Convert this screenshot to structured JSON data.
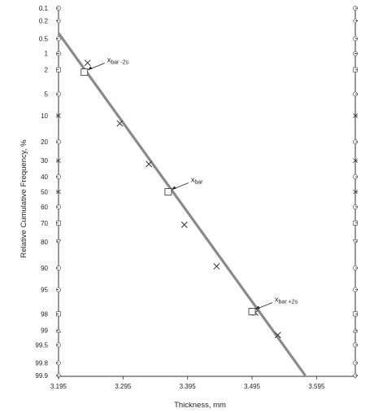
{
  "chart_data": {
    "type": "scatter",
    "title": "",
    "xlabel": "Thickness, mm",
    "ylabel": "Relative Cumulative Frequency, %",
    "xlim": [
      3.195,
      3.655
    ],
    "x_ticks": [
      "3.195",
      "3.295",
      "3.395",
      "3.495",
      "3.595"
    ],
    "y_scale": "normal-probability",
    "y_ticks": [
      "0.1",
      "0.2",
      "0.5",
      "1",
      "2",
      "5",
      "10",
      "20",
      "30",
      "40",
      "50",
      "60",
      "70",
      "80",
      "90",
      "95",
      "98",
      "99",
      "99.5",
      "99.8",
      "99.9"
    ],
    "grid": false,
    "series": [
      {
        "marker": "x",
        "x": [
          3.24,
          3.29,
          3.335,
          3.39,
          3.44,
          3.5,
          3.535
        ],
        "y": [
          1.5,
          12.5,
          32,
          71,
          89.5,
          97.9,
          99.2
        ]
      },
      {
        "type": "line",
        "x": [
          3.195,
          3.5775
        ],
        "y": [
          0.38,
          99.9
        ]
      }
    ],
    "reference_points": [
      {
        "x": 3.235,
        "y": 2.2,
        "label_main": "x",
        "label_sub": "bar -2s"
      },
      {
        "x": 3.365,
        "y": 50,
        "label_main": "x",
        "label_sub": "bar"
      },
      {
        "x": 3.495,
        "y": 97.8,
        "label_main": "x",
        "label_sub": "bar +2s"
      }
    ],
    "right_axis_markers": true
  },
  "colors": {
    "fit_line": "#8a8a8a",
    "marker": "#333333",
    "axis": "#333333"
  }
}
